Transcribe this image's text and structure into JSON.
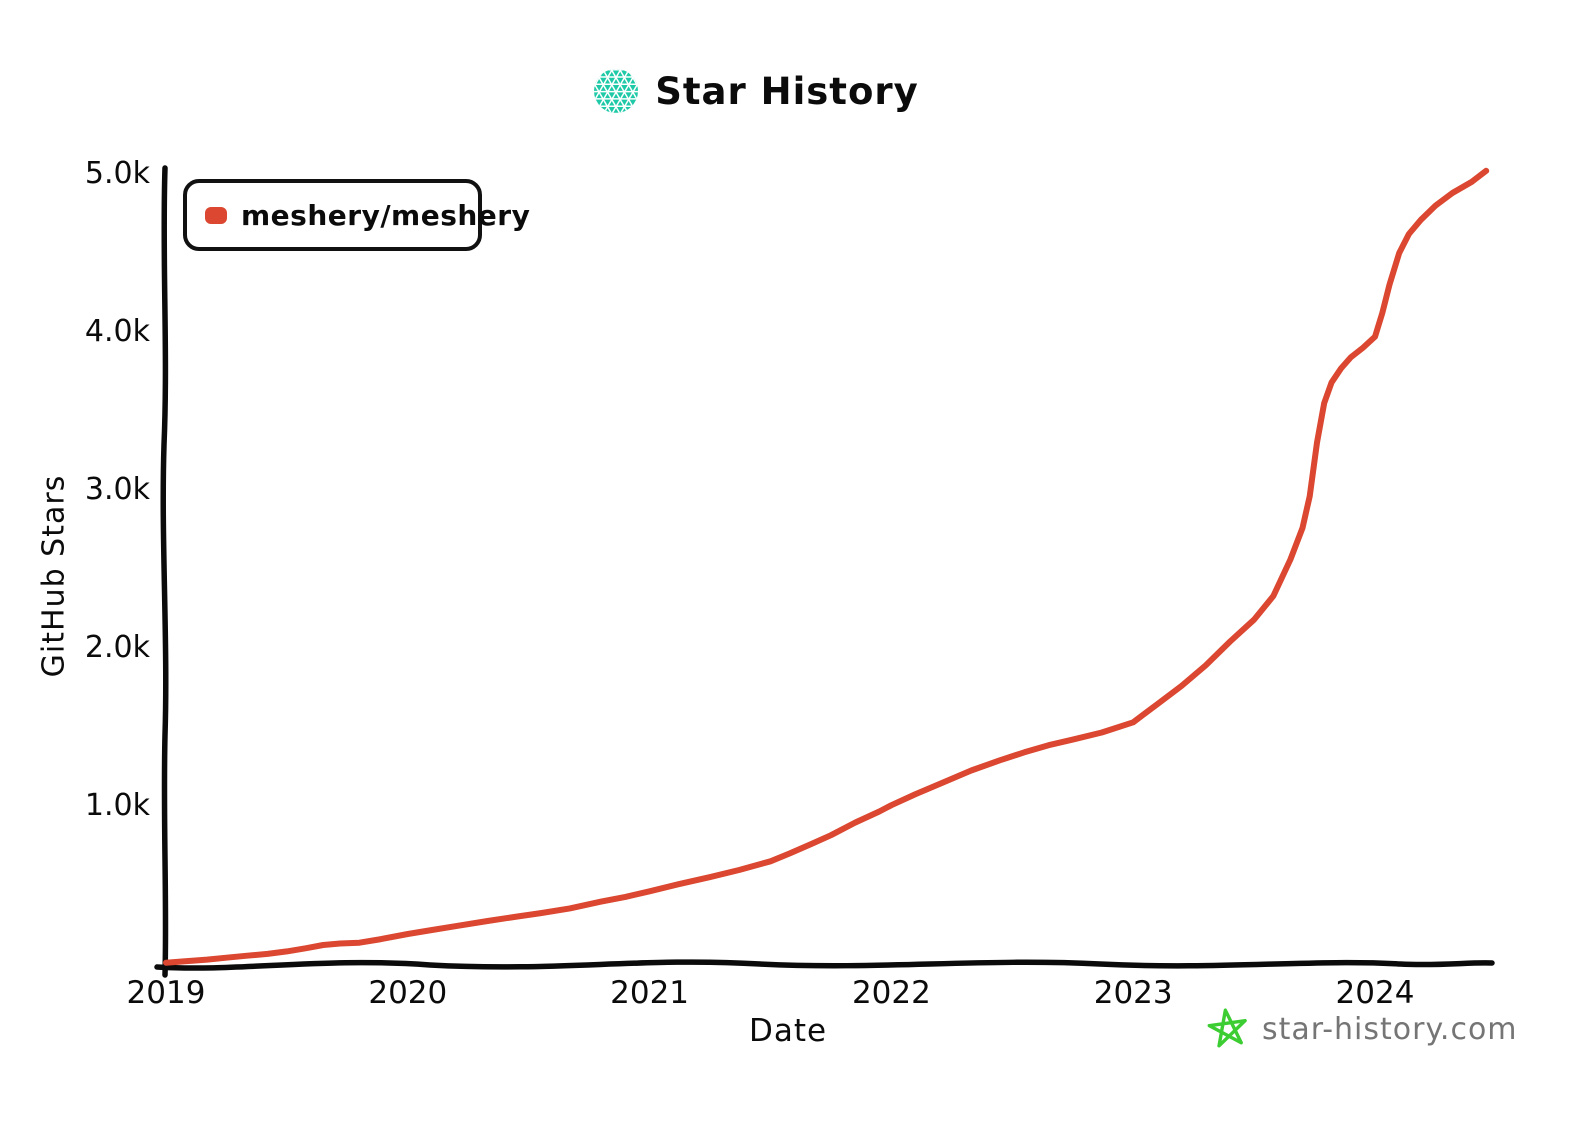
{
  "header": {
    "title": "Star History",
    "logo_icon": "star-history-logo-icon",
    "logo_color": "#1EC9A7"
  },
  "legend": {
    "series_label": "meshery/meshery",
    "marker_color": "#DB4730"
  },
  "watermark": {
    "label": "star-history.com",
    "icon": "star-icon",
    "icon_color": "#3CCD32",
    "text_color": "#757575"
  },
  "chart_data": {
    "type": "line",
    "title": "Star History",
    "xlabel": "Date",
    "ylabel": "GitHub Stars",
    "grid": false,
    "legend_position": "top-left",
    "xlim": [
      2019,
      2024.5
    ],
    "ylim": [
      0,
      5100
    ],
    "x_ticks": [
      "2019",
      "2020",
      "2021",
      "2022",
      "2023",
      "2024"
    ],
    "x_tick_years": [
      2019,
      2020,
      2021,
      2022,
      2023,
      2024
    ],
    "y_ticks": [
      "5.0k",
      "4.0k",
      "3.0k",
      "2.0k",
      "1.0k"
    ],
    "y_tick_values": [
      5000,
      4000,
      3000,
      2000,
      1000
    ],
    "series": [
      {
        "name": "meshery/meshery",
        "color": "#DB4730",
        "x": [
          2019.0,
          2019.08,
          2019.17,
          2019.25,
          2019.33,
          2019.42,
          2019.5,
          2019.58,
          2019.65,
          2019.72,
          2019.8,
          2019.88,
          2020.0,
          2020.1,
          2020.2,
          2020.33,
          2020.45,
          2020.55,
          2020.67,
          2020.8,
          2020.9,
          2021.0,
          2021.12,
          2021.25,
          2021.37,
          2021.5,
          2021.58,
          2021.67,
          2021.75,
          2021.85,
          2021.95,
          2022.0,
          2022.1,
          2022.2,
          2022.33,
          2022.45,
          2022.55,
          2022.65,
          2022.75,
          2022.87,
          2023.0,
          2023.1,
          2023.2,
          2023.3,
          2023.4,
          2023.5,
          2023.58,
          2023.65,
          2023.7,
          2023.73,
          2023.76,
          2023.79,
          2023.82,
          2023.86,
          2023.9,
          2023.95,
          2024.0,
          2024.03,
          2024.06,
          2024.1,
          2024.14,
          2024.19,
          2024.25,
          2024.32,
          2024.4,
          2024.46
        ],
        "y": [
          8,
          18,
          28,
          40,
          52,
          64,
          80,
          100,
          120,
          130,
          135,
          155,
          190,
          215,
          240,
          272,
          300,
          322,
          352,
          395,
          425,
          460,
          505,
          550,
          595,
          650,
          700,
          760,
          815,
          895,
          965,
          1005,
          1075,
          1140,
          1225,
          1290,
          1340,
          1385,
          1420,
          1465,
          1530,
          1645,
          1760,
          1890,
          2040,
          2180,
          2330,
          2560,
          2760,
          2960,
          3300,
          3550,
          3680,
          3770,
          3840,
          3900,
          3970,
          4120,
          4300,
          4500,
          4620,
          4710,
          4800,
          4880,
          4950,
          5020
        ]
      }
    ]
  }
}
